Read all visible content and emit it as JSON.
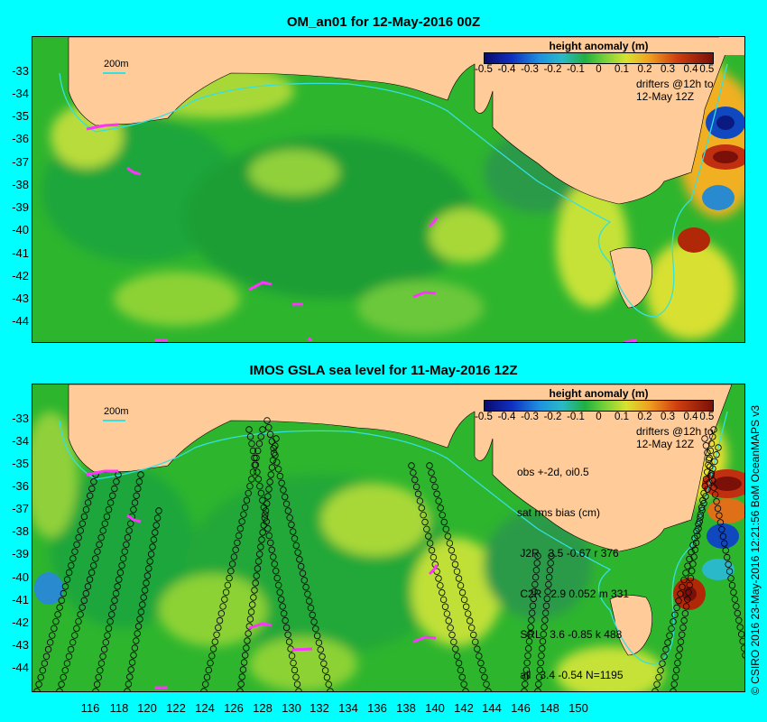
{
  "panels": [
    {
      "title": "OM_an01 for 12-May-2016 00Z",
      "scale_label": "200m",
      "colorbar": {
        "title": "height anomaly (m)",
        "ticks": [
          "-0.5",
          "-0.4",
          "-0.3",
          "-0.2",
          "-0.1",
          "0",
          "0.1",
          "0.2",
          "0.3",
          "0.4",
          "0.5"
        ]
      },
      "drifter_legend": [
        "drifters @12h to",
        "12-May 12Z"
      ]
    },
    {
      "title": "IMOS GSLA sea level  for 11-May-2016 12Z",
      "scale_label": "200m",
      "colorbar": {
        "title": "height anomaly (m)",
        "ticks": [
          "-0.5",
          "-0.4",
          "-0.3",
          "-0.2",
          "-0.1",
          "0",
          "0.1",
          "0.2",
          "0.3",
          "0.4",
          "0.5"
        ]
      },
      "drifter_legend": [
        "drifters @12h to",
        "12-May 12Z"
      ],
      "stats": [
        "obs +-2d, oi0.5",
        "sat rms bias (cm)",
        " J2R   3.5 -0.67 r 376",
        " C2R   2.9 0.052 m 331",
        " SRL   3.6 -0.85 k 488",
        " all   3.4 -0.54 N=1195"
      ]
    }
  ],
  "lat_ticks": [
    "-33",
    "-34",
    "-35",
    "-36",
    "-37",
    "-38",
    "-39",
    "-40",
    "-41",
    "-42",
    "-43",
    "-44"
  ],
  "lon_ticks": [
    "116",
    "118",
    "120",
    "122",
    "124",
    "126",
    "128",
    "130",
    "132",
    "134",
    "136",
    "138",
    "140",
    "142",
    "144",
    "146",
    "148",
    "150"
  ],
  "credit": "© CSIRO 2016   23-May-2016 12:21:56 BoM OceanMAPS v3",
  "colors": {
    "land": "#ffcc99",
    "ocean": "#2fbf2f",
    "isobath": "#35e0e0",
    "drifter": "#ff33ff",
    "track": "#000000",
    "background": "#00ffff"
  }
}
